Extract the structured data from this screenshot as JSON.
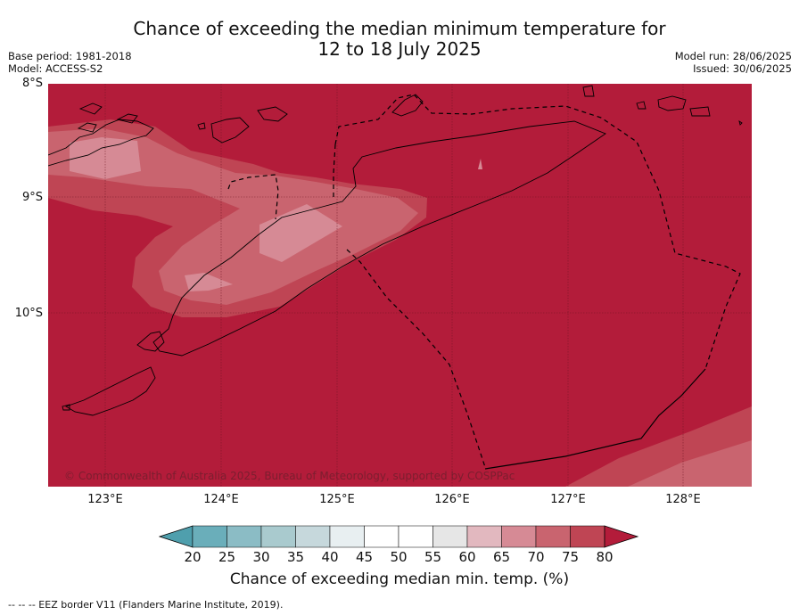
{
  "title_line1": "Chance of exceeding the median minimum temperature for",
  "title_line2": "12 to 18 July 2025",
  "meta_left": [
    "Base period: 1981-2018",
    "Model: ACCESS-S2"
  ],
  "meta_right": [
    "Model run: 28/06/2025",
    "Issued: 30/06/2025"
  ],
  "lat_labels": [
    "8°S",
    "9°S",
    "10°S"
  ],
  "lon_labels": [
    "123°E",
    "124°E",
    "125°E",
    "126°E",
    "127°E",
    "128°E"
  ],
  "copyright": "© Commonwealth of Australia 2025, Bureau of Meteorology, supported by COSPPac",
  "colorbar": {
    "label": "Chance of exceeding median min. temp. (%)",
    "ticks": [
      "20",
      "25",
      "30",
      "35",
      "40",
      "45",
      "50",
      "55",
      "60",
      "65",
      "70",
      "75",
      "80"
    ],
    "colors": [
      "#4f9fad",
      "#6aaeba",
      "#8bbcc5",
      "#a9cace",
      "#c6d8dc",
      "#e8eff1",
      "#ffffff",
      "#ffffff",
      "#e6e6e6",
      "#e2b8bf",
      "#d68a95",
      "#c9646f",
      "#bf4554",
      "#b31c3a"
    ]
  },
  "footnote": "--  --  -- EEZ border V11 (Flanders Marine Institute, 2019)."
}
